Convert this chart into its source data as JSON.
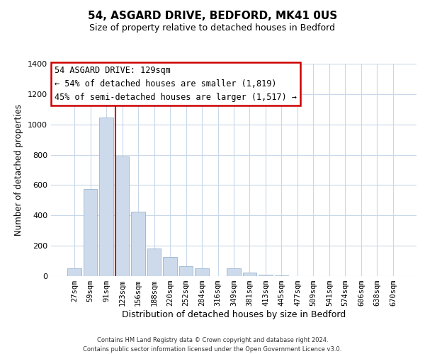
{
  "title": "54, ASGARD DRIVE, BEDFORD, MK41 0US",
  "subtitle": "Size of property relative to detached houses in Bedford",
  "xlabel": "Distribution of detached houses by size in Bedford",
  "ylabel": "Number of detached properties",
  "bar_color": "#ccdaeb",
  "bar_edge_color": "#9ab5d0",
  "vline_color": "#cc0000",
  "categories": [
    "27sqm",
    "59sqm",
    "91sqm",
    "123sqm",
    "156sqm",
    "188sqm",
    "220sqm",
    "252sqm",
    "284sqm",
    "316sqm",
    "349sqm",
    "381sqm",
    "413sqm",
    "445sqm",
    "477sqm",
    "509sqm",
    "541sqm",
    "574sqm",
    "606sqm",
    "638sqm",
    "670sqm"
  ],
  "values": [
    50,
    575,
    1045,
    790,
    425,
    180,
    125,
    65,
    50,
    0,
    50,
    25,
    10,
    5,
    0,
    0,
    0,
    0,
    0,
    0,
    0
  ],
  "ylim": [
    0,
    1400
  ],
  "yticks": [
    0,
    200,
    400,
    600,
    800,
    1000,
    1200,
    1400
  ],
  "annotation_title": "54 ASGARD DRIVE: 129sqm",
  "annotation_line1": "← 54% of detached houses are smaller (1,819)",
  "annotation_line2": "45% of semi-detached houses are larger (1,517) →",
  "footer_line1": "Contains HM Land Registry data © Crown copyright and database right 2024.",
  "footer_line2": "Contains public sector information licensed under the Open Government Licence v3.0.",
  "background_color": "#ffffff",
  "annotation_box_color": "#ffffff",
  "annotation_box_edge": "#cc0000",
  "vline_index": 3
}
